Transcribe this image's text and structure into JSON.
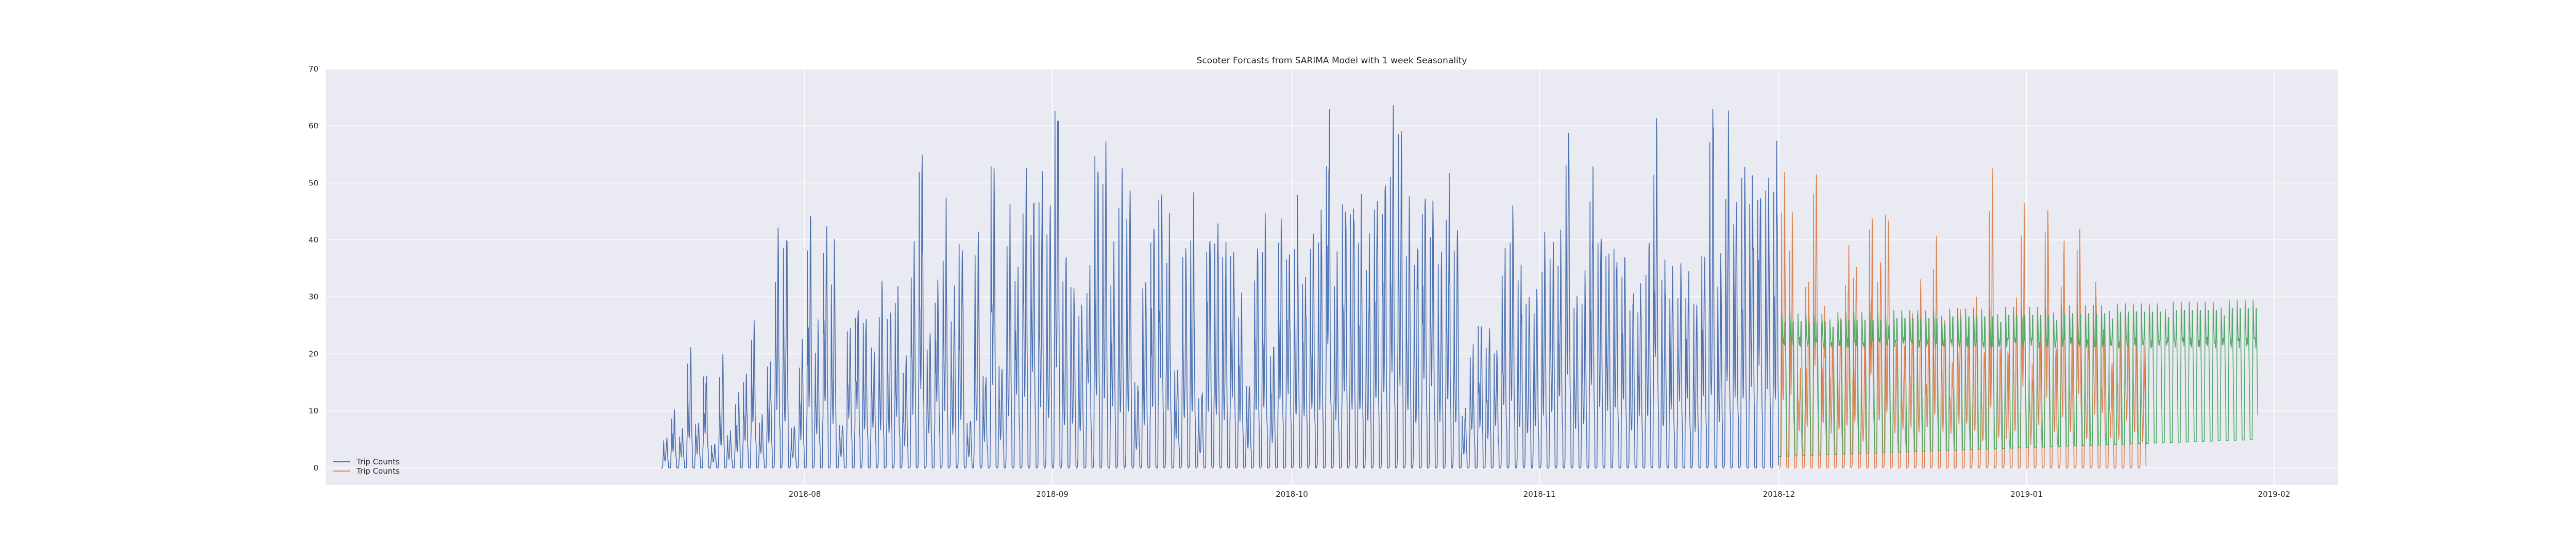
{
  "chart_data": {
    "type": "line",
    "title": "Scooter Forcasts from SARIMA Model with 1 week Seasonality",
    "xlabel": "",
    "ylabel": "",
    "xlim": [
      "2018-06-02",
      "2019-02-09"
    ],
    "ylim": [
      -3,
      70
    ],
    "grid": true,
    "legend_position": "lower-left",
    "x_ticks": [
      "2018-08",
      "2018-09",
      "2018-10",
      "2018-11",
      "2018-12",
      "2019-01",
      "2019-02"
    ],
    "y_ticks": [
      0,
      10,
      20,
      30,
      40,
      50,
      60,
      70
    ],
    "colors": {
      "background": "#eaeaf2",
      "grid": "#ffffff",
      "observed": "#4c72b0",
      "forecast_1": "#dd8452",
      "forecast_2": "#55a868"
    },
    "series": [
      {
        "name": "Trip Counts",
        "color": "#4c72b0",
        "start": "2018-07-14",
        "end": "2018-12-01",
        "resolution": "hourly",
        "daily_peaks": [
          5,
          9,
          6,
          19,
          8,
          17,
          4,
          17,
          6,
          12,
          15,
          23,
          8,
          18,
          36,
          40,
          7,
          19,
          39,
          22,
          38,
          35,
          8,
          25,
          28,
          27,
          22,
          29,
          27,
          29,
          18,
          36,
          53,
          21,
          30,
          40,
          27,
          40,
          8,
          41,
          17,
          53,
          18,
          41,
          35,
          47,
          45,
          47,
          44,
          67,
          34,
          33,
          28,
          33,
          55,
          50,
          35,
          47,
          48,
          15,
          33,
          42,
          49,
          38,
          18,
          41,
          41,
          13,
          41,
          40,
          37,
          40,
          29,
          15,
          35,
          39,
          20,
          41,
          38,
          42,
          34,
          40,
          43,
          57,
          32,
          48,
          46,
          40,
          37,
          46,
          47,
          55,
          61,
          41,
          38,
          45,
          44,
          36,
          45,
          39,
          10,
          20,
          25,
          22,
          21,
          35,
          41,
          33,
          29,
          30,
          35,
          37,
          38,
          58,
          28,
          30,
          48,
          41,
          38,
          40,
          36,
          30,
          30,
          36,
          52,
          35,
          32,
          33,
          33,
          30,
          39,
          61,
          34,
          52,
          47,
          51
        ]
      },
      {
        "name": "Trip Counts",
        "color": "#dd8452",
        "start": "2018-12-01",
        "end": "2019-01-16",
        "resolution": "hourly",
        "daily_peaks": [
          47,
          40,
          18,
          33,
          50,
          27,
          22,
          26,
          34,
          36,
          20,
          43,
          33,
          45,
          21,
          20,
          27,
          29,
          25,
          38,
          26,
          20,
          30,
          24,
          30,
          21,
          47,
          22,
          20,
          27,
          44,
          17,
          26,
          42,
          22,
          35,
          21,
          39,
          23,
          30,
          25,
          18,
          22,
          28,
          25,
          20
        ]
      },
      {
        "name": "",
        "color": "#55a868",
        "start": "2018-12-01",
        "end": "2019-01-30",
        "resolution": "hourly",
        "weekly_peak_pattern": [
          27,
          27,
          27,
          27,
          27,
          27,
          26
        ],
        "peak_growth_per_week": 0.3,
        "trough_start": 2,
        "trough_end": 5,
        "plateau": 22
      }
    ],
    "legend": [
      {
        "label": "Trip Counts",
        "color": "#4c72b0"
      },
      {
        "label": "Trip Counts",
        "color": "#dd8452"
      }
    ]
  }
}
